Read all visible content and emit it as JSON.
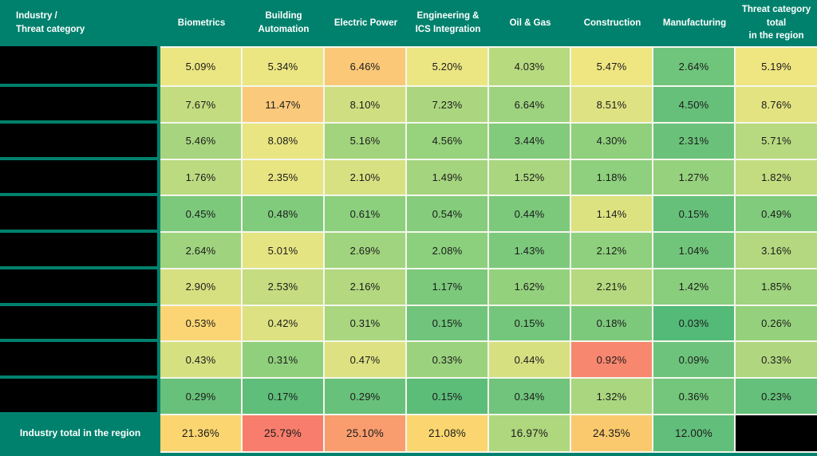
{
  "table": {
    "corner_header": "Industry /\nThreat category",
    "columns": [
      "Biometrics",
      "Building\nAutomation",
      "Electric Power",
      "Engineering &\nICS Integration",
      "Oil & Gas",
      "Construction",
      "Manufacturing",
      "Threat category\ntotal\nin the region"
    ],
    "row_labels_visible": false,
    "row_label_state": "redacted-black-box",
    "rows": [
      {
        "cells": [
          {
            "v": "5.09%",
            "c": "#EBE682"
          },
          {
            "v": "5.34%",
            "c": "#EBE682"
          },
          {
            "v": "6.46%",
            "c": "#FBC878"
          },
          {
            "v": "5.20%",
            "c": "#EBE682"
          },
          {
            "v": "4.03%",
            "c": "#B8DA7F"
          },
          {
            "v": "5.47%",
            "c": "#EFE682"
          },
          {
            "v": "2.64%",
            "c": "#6FC57B"
          },
          {
            "v": "5.19%",
            "c": "#EFE682"
          }
        ]
      },
      {
        "cells": [
          {
            "v": "7.67%",
            "c": "#C3DC80"
          },
          {
            "v": "11.47%",
            "c": "#FBC97B"
          },
          {
            "v": "8.10%",
            "c": "#CFDE81"
          },
          {
            "v": "7.23%",
            "c": "#ABD67F"
          },
          {
            "v": "6.64%",
            "c": "#9DD37E"
          },
          {
            "v": "8.51%",
            "c": "#DEE282"
          },
          {
            "v": "4.50%",
            "c": "#66C07A"
          },
          {
            "v": "8.76%",
            "c": "#E3E382"
          }
        ]
      },
      {
        "cells": [
          {
            "v": "5.46%",
            "c": "#A7D57F"
          },
          {
            "v": "8.08%",
            "c": "#E9E582"
          },
          {
            "v": "5.16%",
            "c": "#A2D47E"
          },
          {
            "v": "4.56%",
            "c": "#97D27D"
          },
          {
            "v": "3.44%",
            "c": "#82CB7C"
          },
          {
            "v": "4.30%",
            "c": "#90D07D"
          },
          {
            "v": "2.31%",
            "c": "#6AC27A"
          },
          {
            "v": "5.71%",
            "c": "#B7D97F"
          }
        ]
      },
      {
        "cells": [
          {
            "v": "1.76%",
            "c": "#BCDA80"
          },
          {
            "v": "2.35%",
            "c": "#E7E482"
          },
          {
            "v": "2.10%",
            "c": "#D8E181"
          },
          {
            "v": "1.49%",
            "c": "#A5D47E"
          },
          {
            "v": "1.52%",
            "c": "#A9D67F"
          },
          {
            "v": "1.18%",
            "c": "#8ED07D"
          },
          {
            "v": "1.27%",
            "c": "#96D17D"
          },
          {
            "v": "1.82%",
            "c": "#C3DC80"
          }
        ]
      },
      {
        "cells": [
          {
            "v": "0.45%",
            "c": "#7DC97C"
          },
          {
            "v": "0.48%",
            "c": "#80CB7C"
          },
          {
            "v": "0.61%",
            "c": "#8CCF7D"
          },
          {
            "v": "0.54%",
            "c": "#85CC7C"
          },
          {
            "v": "0.44%",
            "c": "#7CC97C"
          },
          {
            "v": "1.14%",
            "c": "#DDE281"
          },
          {
            "v": "0.15%",
            "c": "#66C07A"
          },
          {
            "v": "0.49%",
            "c": "#81CB7C"
          }
        ]
      },
      {
        "cells": [
          {
            "v": "2.64%",
            "c": "#9FD37E"
          },
          {
            "v": "5.01%",
            "c": "#E5E482"
          },
          {
            "v": "2.69%",
            "c": "#A1D47E"
          },
          {
            "v": "2.08%",
            "c": "#8CCF7D"
          },
          {
            "v": "1.43%",
            "c": "#7CC97C"
          },
          {
            "v": "2.12%",
            "c": "#8ED07D"
          },
          {
            "v": "1.04%",
            "c": "#71C57B"
          },
          {
            "v": "3.16%",
            "c": "#B3D87F"
          }
        ]
      },
      {
        "cells": [
          {
            "v": "2.90%",
            "c": "#D7E081"
          },
          {
            "v": "2.53%",
            "c": "#C5DC80"
          },
          {
            "v": "2.16%",
            "c": "#B3D87F"
          },
          {
            "v": "1.17%",
            "c": "#7CC97C"
          },
          {
            "v": "1.62%",
            "c": "#94D17D"
          },
          {
            "v": "2.21%",
            "c": "#B6D97F"
          },
          {
            "v": "1.42%",
            "c": "#89CE7D"
          },
          {
            "v": "1.85%",
            "c": "#A0D47E"
          }
        ]
      },
      {
        "cells": [
          {
            "v": "0.53%",
            "c": "#FBD573"
          },
          {
            "v": "0.42%",
            "c": "#DDE181"
          },
          {
            "v": "0.31%",
            "c": "#A9D67F"
          },
          {
            "v": "0.15%",
            "c": "#70C47B"
          },
          {
            "v": "0.15%",
            "c": "#73C67B"
          },
          {
            "v": "0.18%",
            "c": "#7DC97C"
          },
          {
            "v": "0.03%",
            "c": "#54BA78"
          },
          {
            "v": "0.26%",
            "c": "#95D17D"
          }
        ]
      },
      {
        "cells": [
          {
            "v": "0.43%",
            "c": "#D5E081"
          },
          {
            "v": "0.31%",
            "c": "#90D07D"
          },
          {
            "v": "0.47%",
            "c": "#DDE181"
          },
          {
            "v": "0.33%",
            "c": "#9BD27E"
          },
          {
            "v": "0.44%",
            "c": "#D7E081"
          },
          {
            "v": "0.92%",
            "c": "#F8876F"
          },
          {
            "v": "0.09%",
            "c": "#6DC37B"
          },
          {
            "v": "0.33%",
            "c": "#B0D77F"
          }
        ]
      },
      {
        "cells": [
          {
            "v": "0.29%",
            "c": "#68C17A"
          },
          {
            "v": "0.17%",
            "c": "#5FBE79"
          },
          {
            "v": "0.29%",
            "c": "#68C17A"
          },
          {
            "v": "0.15%",
            "c": "#5CBD79"
          },
          {
            "v": "0.34%",
            "c": "#70C47B"
          },
          {
            "v": "1.32%",
            "c": "#A9D67F"
          },
          {
            "v": "0.36%",
            "c": "#73C67B"
          },
          {
            "v": "0.23%",
            "c": "#64C07A"
          }
        ]
      }
    ],
    "total_row": {
      "label": "Industry total in the region",
      "cells": [
        {
          "v": "21.36%",
          "c": "#FBD670"
        },
        {
          "v": "25.79%",
          "c": "#F87D6C"
        },
        {
          "v": "25.10%",
          "c": "#F99D6F"
        },
        {
          "v": "21.08%",
          "c": "#FBD670"
        },
        {
          "v": "16.97%",
          "c": "#AFD77D"
        },
        {
          "v": "24.35%",
          "c": "#FBC96D"
        },
        {
          "v": "12.00%",
          "c": "#62BE7B"
        }
      ],
      "last_cell_state": "redacted-black-box"
    },
    "colors": {
      "header_bg": "#00816D",
      "header_text": "#FFFFFF",
      "grid_line": "#F4F7EC",
      "redacted": "#000000",
      "scale_low": "#54BA78",
      "scale_mid": "#EFE682",
      "scale_high": "#F87D6C"
    }
  },
  "chart_data": {
    "type": "heatmap",
    "title": "",
    "x_categories": [
      "Biometrics",
      "Building Automation",
      "Electric Power",
      "Engineering & ICS Integration",
      "Oil & Gas",
      "Construction",
      "Manufacturing",
      "Threat category total in the region"
    ],
    "y_labels_visible": false,
    "values_percent": [
      [
        5.09,
        5.34,
        6.46,
        5.2,
        4.03,
        5.47,
        2.64,
        5.19
      ],
      [
        7.67,
        11.47,
        8.1,
        7.23,
        6.64,
        8.51,
        4.5,
        8.76
      ],
      [
        5.46,
        8.08,
        5.16,
        4.56,
        3.44,
        4.3,
        2.31,
        5.71
      ],
      [
        1.76,
        2.35,
        2.1,
        1.49,
        1.52,
        1.18,
        1.27,
        1.82
      ],
      [
        0.45,
        0.48,
        0.61,
        0.54,
        0.44,
        1.14,
        0.15,
        0.49
      ],
      [
        2.64,
        5.01,
        2.69,
        2.08,
        1.43,
        2.12,
        1.04,
        3.16
      ],
      [
        2.9,
        2.53,
        2.16,
        1.17,
        1.62,
        2.21,
        1.42,
        1.85
      ],
      [
        0.53,
        0.42,
        0.31,
        0.15,
        0.15,
        0.18,
        0.03,
        0.26
      ],
      [
        0.43,
        0.31,
        0.47,
        0.33,
        0.44,
        0.92,
        0.09,
        0.33
      ],
      [
        0.29,
        0.17,
        0.29,
        0.15,
        0.34,
        1.32,
        0.36,
        0.23
      ]
    ],
    "industry_total_percent": [
      21.36,
      25.79,
      25.1,
      21.08,
      16.97,
      24.35,
      12.0,
      null
    ],
    "legend": "none",
    "color_scale": "green-yellow-red conditional formatting"
  }
}
